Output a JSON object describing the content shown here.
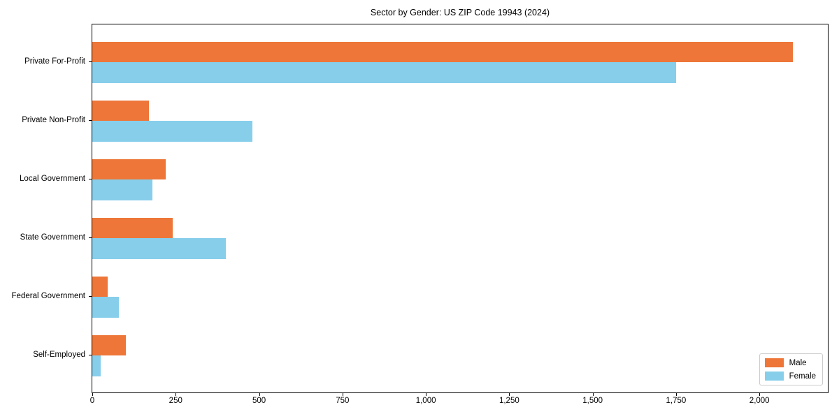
{
  "chart_data": {
    "type": "bar",
    "orientation": "horizontal",
    "title": "Sector by Gender: US ZIP Code 19943 (2024)",
    "categories": [
      "Private For-Profit",
      "Private Non-Profit",
      "Local Government",
      "State Government",
      "Federal Government",
      "Self-Employed"
    ],
    "series": [
      {
        "name": "Male",
        "color": "#ed7638",
        "values": [
          2100,
          170,
          220,
          240,
          45,
          100
        ]
      },
      {
        "name": "Female",
        "color": "#87ceeb",
        "values": [
          1750,
          480,
          180,
          400,
          80,
          25
        ]
      }
    ],
    "xlabel": "",
    "ylabel": "",
    "xlim": [
      0,
      2205
    ],
    "xticks": [
      0,
      250,
      500,
      750,
      1000,
      1250,
      1500,
      1750,
      2000
    ],
    "xtick_labels": [
      "0",
      "250",
      "500",
      "750",
      "1,000",
      "1,250",
      "1,500",
      "1,750",
      "2,000"
    ],
    "grid": false,
    "legend_position": "lower right",
    "colors": {
      "male": "#ed7638",
      "female": "#87ceeb",
      "spine": "#000000",
      "legend_border": "#cccccc",
      "background": "#ffffff"
    }
  }
}
